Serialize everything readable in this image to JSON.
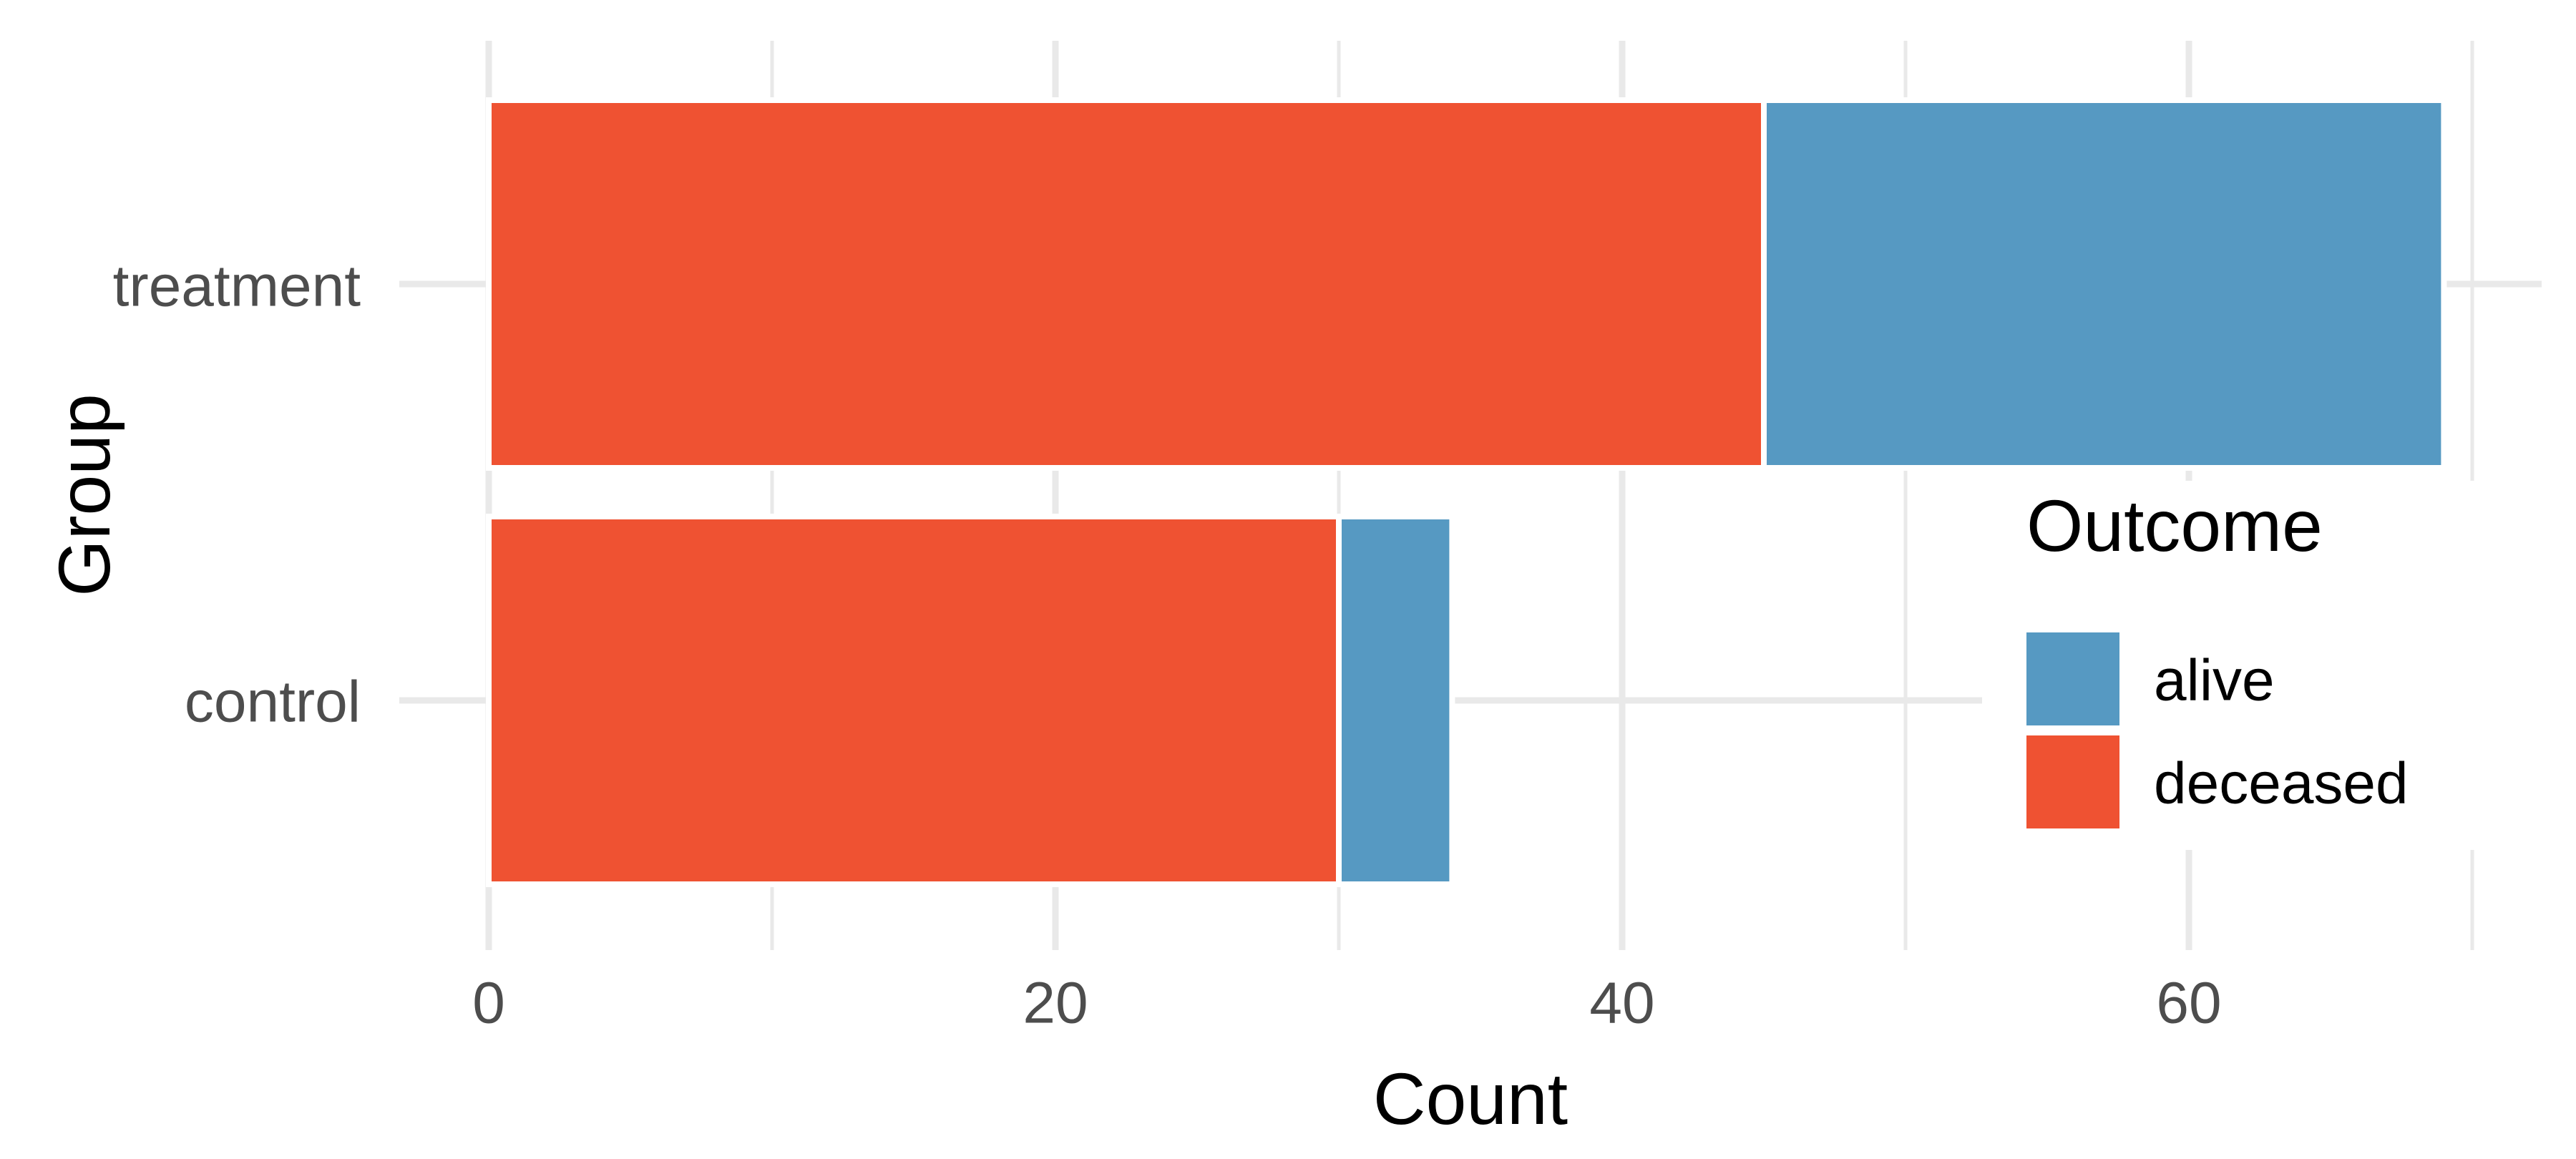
{
  "chart_data": {
    "type": "bar",
    "orientation": "horizontal",
    "stacked": true,
    "title": "",
    "xlabel": "Count",
    "ylabel": "Group",
    "categories": [
      "treatment",
      "control"
    ],
    "series": [
      {
        "name": "alive",
        "color": "#5699C2",
        "values": [
          24,
          4
        ]
      },
      {
        "name": "deceased",
        "color": "#EF5232",
        "values": [
          45,
          30
        ]
      }
    ],
    "totals": [
      69,
      34
    ],
    "x_ticks": [
      {
        "value": 0,
        "label": "0"
      },
      {
        "value": 20,
        "label": "20"
      },
      {
        "value": 40,
        "label": "40"
      },
      {
        "value": 60,
        "label": "60"
      }
    ],
    "x_minor_gridlines": [
      10,
      30,
      50,
      70
    ],
    "xlim": [
      0,
      72
    ],
    "grid": "major-and-minor",
    "legend": {
      "title": "Outcome",
      "position": "inside-right",
      "entries": [
        {
          "label": "alive",
          "color": "#5699C2"
        },
        {
          "label": "deceased",
          "color": "#EF5232"
        }
      ]
    },
    "styles": {
      "background": "#FFFFFF",
      "grid_color": "#E9E9E9",
      "axis_text_color": "#4D4D4D",
      "title_color": "#000000",
      "bar_border_color": "#FFFFFF"
    }
  }
}
